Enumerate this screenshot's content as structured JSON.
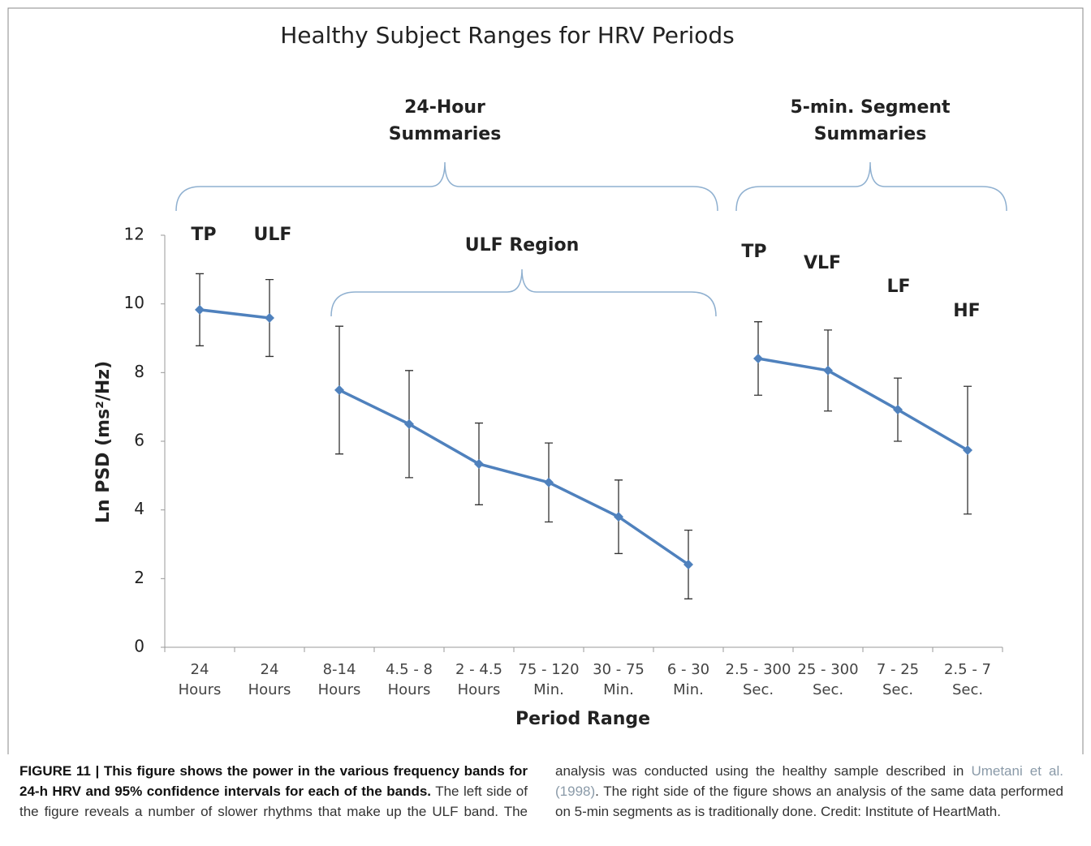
{
  "chart_data": {
    "type": "line",
    "title": "Healthy Subject Ranges for HRV Periods",
    "y_label": "Ln PSD (ms²/Hz)",
    "x_label": "Period Range",
    "categories": [
      [
        "24",
        "Hours"
      ],
      [
        "24",
        "Hours"
      ],
      [
        "8-14",
        "Hours"
      ],
      [
        "4.5 - 8",
        "Hours"
      ],
      [
        "2 - 4.5",
        "Hours"
      ],
      [
        "75 - 120",
        "Min."
      ],
      [
        "30 - 75",
        "Min."
      ],
      [
        "6 - 30",
        "Min."
      ],
      [
        "2.5 - 300",
        "Sec."
      ],
      [
        "25 - 300",
        "Sec."
      ],
      [
        "7 - 25",
        "Sec."
      ],
      [
        "2.5 - 7",
        "Sec."
      ]
    ],
    "series": [
      {
        "color": "#4f81bd",
        "values": [
          9.83,
          9.59,
          null,
          null,
          null,
          null,
          null,
          null,
          null,
          null,
          null,
          null
        ],
        "errors": [
          1.05,
          1.12,
          null,
          null,
          null,
          null,
          null,
          null,
          null,
          null,
          null,
          null
        ]
      },
      {
        "color": "#4f81bd",
        "values": [
          null,
          null,
          7.49,
          6.5,
          5.34,
          4.8,
          3.8,
          2.41,
          null,
          null,
          null,
          null
        ],
        "errors": [
          null,
          null,
          1.86,
          1.56,
          1.19,
          1.15,
          1.07,
          1.0,
          null,
          null,
          null,
          null
        ]
      },
      {
        "color": "#4f81bd",
        "values": [
          null,
          null,
          null,
          null,
          null,
          null,
          null,
          null,
          8.41,
          8.06,
          6.92,
          5.74
        ],
        "errors": [
          null,
          null,
          null,
          null,
          null,
          null,
          null,
          null,
          1.07,
          1.18,
          0.92,
          1.86
        ]
      }
    ],
    "ylim": [
      0,
      12
    ],
    "yticks": [
      0,
      2,
      4,
      6,
      8,
      10,
      12
    ],
    "annotations": {
      "group_1": [
        "24-Hour",
        "Summaries"
      ],
      "group_2": [
        "5-min. Segment",
        "Summaries"
      ],
      "region": "ULF Region",
      "bands": [
        "TP",
        "ULF",
        "TP",
        "VLF",
        "LF",
        "HF"
      ]
    }
  },
  "caption": {
    "label": "FIGURE 11 |",
    "heading": "This figure shows the power in the various frequency bands for 24-h HRV and 95% confidence intervals for each of the bands.",
    "body_before_link": "The left side of the figure reveals a number of slower rhythms that make up the ULF band. The analysis was conducted using the healthy sample described in",
    "link": "Umetani et al. (1998)",
    "body_after_link": ". The right side of the figure shows an analysis of the same data performed on 5-min segments as is traditionally done. Credit: Institute of HeartMath."
  }
}
